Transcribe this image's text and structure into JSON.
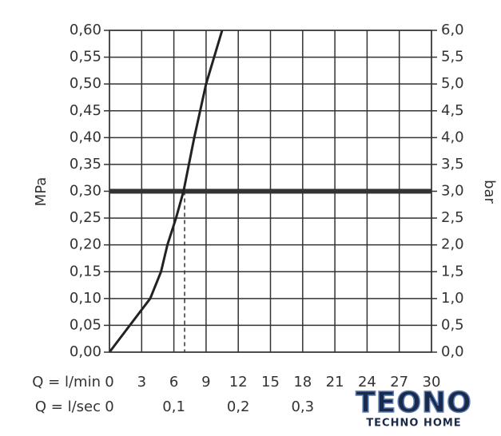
{
  "chart_data": {
    "type": "line",
    "x_label": "Q = l/min",
    "x2_label": "Q = l/sec",
    "y_label": "MPa",
    "y2_label": "bar",
    "x": [
      0,
      1.9,
      3.8,
      4.8,
      5.4,
      6.2,
      6.9,
      7.9,
      9.0,
      10.5
    ],
    "values": [
      0,
      0.05,
      0.1,
      0.15,
      0.2,
      0.25,
      0.3,
      0.4,
      0.5,
      0.6
    ],
    "color": "#222222",
    "xlim": [
      0,
      30
    ],
    "xticks": [
      0,
      3,
      6,
      9,
      12,
      15,
      18,
      21,
      24,
      27,
      30
    ],
    "x2lim": [
      0,
      0.5
    ],
    "x2ticks": [
      0,
      {
        "value": 0.1,
        "label": "0,1"
      },
      {
        "value": 0.2,
        "label": "0,2"
      },
      {
        "value": 0.3,
        "label": "0,3"
      }
    ],
    "ylim": [
      0,
      0.6
    ],
    "yticks": [
      {
        "value": 0,
        "label": "0,00"
      },
      {
        "value": 0.05,
        "label": "0,05"
      },
      {
        "value": 0.1,
        "label": "0,10"
      },
      {
        "value": 0.15,
        "label": "0,15"
      },
      {
        "value": 0.2,
        "label": "0,20"
      },
      {
        "value": 0.25,
        "label": "0,25"
      },
      {
        "value": 0.3,
        "label": "0,30"
      },
      {
        "value": 0.35,
        "label": "0,35"
      },
      {
        "value": 0.4,
        "label": "0,40"
      },
      {
        "value": 0.45,
        "label": "0,45"
      },
      {
        "value": 0.5,
        "label": "0,50"
      },
      {
        "value": 0.55,
        "label": "0,55"
      },
      {
        "value": 0.6,
        "label": "0,60"
      }
    ],
    "y2lim": [
      0,
      6
    ],
    "y2ticks": [
      {
        "value": 0,
        "label": "0,0"
      },
      {
        "value": 0.5,
        "label": "0,5"
      },
      {
        "value": 1,
        "label": "1,0"
      },
      {
        "value": 1.5,
        "label": "1,5"
      },
      {
        "value": 2,
        "label": "2,0"
      },
      {
        "value": 2.5,
        "label": "2,5"
      },
      {
        "value": 3,
        "label": "3,0"
      },
      {
        "value": 3.5,
        "label": "3,5"
      },
      {
        "value": 4,
        "label": "4,0"
      },
      {
        "value": 4.5,
        "label": "4,5"
      },
      {
        "value": 5,
        "label": "5,0"
      },
      {
        "value": 5.5,
        "label": "5,5"
      },
      {
        "value": 6,
        "label": "6,0"
      }
    ],
    "reference_y": 0.3,
    "reference_x": 7,
    "grid": true
  },
  "watermark": {
    "title": "TEONO",
    "subtitle": "TECHNO HOME"
  }
}
